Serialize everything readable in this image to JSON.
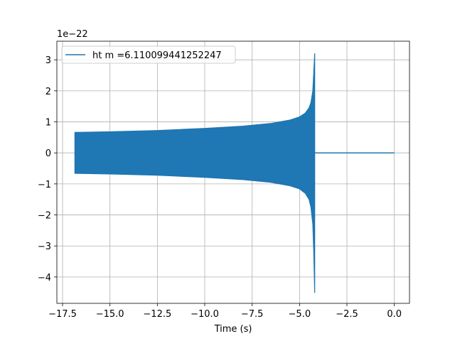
{
  "chart_data": {
    "type": "line",
    "title": "",
    "xlabel": "Time (s)",
    "ylabel": "",
    "y_scale_note": "1e−22",
    "xlim": [
      -17.8,
      0.8
    ],
    "ylim": [
      -4.85,
      3.6
    ],
    "x_ticks": [
      -17.5,
      -15.0,
      -12.5,
      -10.0,
      -7.5,
      -5.0,
      -2.5,
      0.0
    ],
    "x_tick_labels": [
      "−17.5",
      "−15.0",
      "−12.5",
      "−10.0",
      "−7.5",
      "−5.0",
      "−2.5",
      "0.0"
    ],
    "y_ticks": [
      -4,
      -3,
      -2,
      -1,
      0,
      1,
      2,
      3
    ],
    "y_tick_labels": [
      "−4",
      "−3",
      "−2",
      "−1",
      "0",
      "1",
      "2",
      "3"
    ],
    "grid": true,
    "legend_position": "upper-left",
    "series": [
      {
        "name": "ht m =6.110099441252247",
        "color": "#1f77b4",
        "style": "oscillating chirp: dense oscillation with symmetric upper/lower envelope, then flat zero after merger",
        "upper_envelope": {
          "x": [
            -16.85,
            -15.0,
            -12.5,
            -10.0,
            -8.0,
            -6.5,
            -5.5,
            -5.0,
            -4.7,
            -4.5,
            -4.4,
            -4.3,
            -4.25,
            -4.2
          ],
          "y": [
            0.66,
            0.68,
            0.72,
            0.79,
            0.86,
            0.95,
            1.06,
            1.16,
            1.28,
            1.45,
            1.62,
            2.0,
            2.6,
            3.2
          ]
        },
        "lower_envelope": {
          "x": [
            -16.85,
            -15.0,
            -12.5,
            -10.0,
            -8.0,
            -6.5,
            -5.5,
            -5.0,
            -4.7,
            -4.5,
            -4.4,
            -4.3,
            -4.25,
            -4.2
          ],
          "y": [
            -0.66,
            -0.68,
            -0.72,
            -0.79,
            -0.86,
            -0.95,
            -1.06,
            -1.16,
            -1.3,
            -1.5,
            -1.75,
            -2.3,
            -3.2,
            -4.5
          ]
        },
        "flat_segment": {
          "x": [
            -4.2,
            0.0
          ],
          "y": [
            0.0,
            0.0
          ]
        }
      }
    ]
  }
}
